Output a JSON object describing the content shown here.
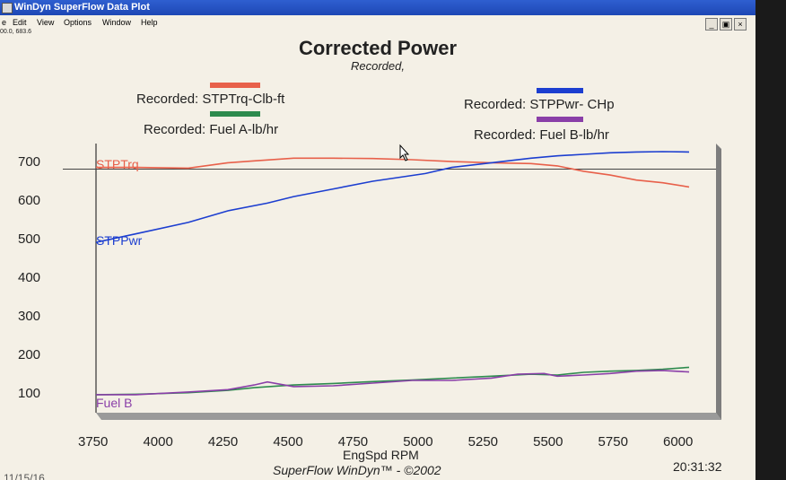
{
  "window": {
    "title": "WinDyn SuperFlow Data Plot",
    "coord_readout": "00.0, 683.6",
    "controls": {
      "minimize": "_",
      "restore": "▣",
      "close": "×"
    }
  },
  "menu": [
    "e",
    "Edit",
    "View",
    "Options",
    "Window",
    "Help"
  ],
  "legend": [
    {
      "label": "Recorded: STPTrq-Clb-ft",
      "color": "#e8604a"
    },
    {
      "label": "Recorded: STPPwr- CHp",
      "color": "#1c3ed0"
    },
    {
      "label": "Recorded: Fuel A-lb/hr",
      "color": "#2e8b4e"
    },
    {
      "label": "Recorded: Fuel B-lb/hr",
      "color": "#8a3fa8"
    }
  ],
  "inline_labels": {
    "trq": "STPTrq",
    "pwr": "STPPwr",
    "fuel": "Fuel B"
  },
  "footer": {
    "credit": "SuperFlow WinDyn™ - ©2002",
    "time": "20:31:32",
    "date_fragment": "11/15/16"
  },
  "chart_data": {
    "type": "line",
    "title": "Corrected Power",
    "subtitle": "Recorded,",
    "xlabel": "EngSpd  RPM",
    "xlim": [
      3750,
      6000
    ],
    "ylim": [
      50,
      750
    ],
    "x_ticks": [
      3750,
      4000,
      4250,
      4500,
      4750,
      5000,
      5250,
      5500,
      5750,
      6000
    ],
    "y_ticks": [
      100,
      200,
      300,
      400,
      500,
      600,
      700
    ],
    "reference_line": 683.6,
    "series": [
      {
        "name": "Recorded: STPTrq-Clb-ft",
        "color": "#e8604a",
        "x": [
          3750,
          3900,
          4100,
          4250,
          4350,
          4500,
          4650,
          4800,
          4950,
          5100,
          5250,
          5400,
          5500,
          5600,
          5700,
          5800,
          5900,
          6000
        ],
        "y": [
          688,
          688,
          686,
          700,
          705,
          712,
          712,
          711,
          708,
          703,
          700,
          698,
          692,
          678,
          668,
          655,
          648,
          637
        ]
      },
      {
        "name": "Recorded: STPPwr- CHp",
        "color": "#1c3ed0",
        "x": [
          3750,
          3900,
          4100,
          4250,
          4400,
          4500,
          4650,
          4800,
          5000,
          5100,
          5250,
          5400,
          5500,
          5600,
          5700,
          5800,
          5900,
          6000
        ],
        "y": [
          493,
          515,
          545,
          575,
          595,
          612,
          632,
          652,
          672,
          688,
          700,
          712,
          718,
          722,
          726,
          728,
          729,
          728
        ]
      },
      {
        "name": "Recorded: Fuel A-lb/hr",
        "color": "#2e8b4e",
        "x": [
          3750,
          3900,
          4100,
          4250,
          4350,
          4500,
          4650,
          4800,
          4950,
          5100,
          5250,
          5400,
          5500,
          5600,
          5700,
          5800,
          5900,
          6000
        ],
        "y": [
          97,
          98,
          102,
          108,
          115,
          122,
          126,
          131,
          135,
          140,
          145,
          150,
          148,
          155,
          158,
          160,
          163,
          168
        ]
      },
      {
        "name": "Recorded: Fuel B-lb/hr",
        "color": "#8a3fa8",
        "x": [
          3750,
          3900,
          4100,
          4250,
          4350,
          4400,
          4500,
          4650,
          4800,
          4950,
          5100,
          5250,
          5350,
          5450,
          5500,
          5600,
          5700,
          5800,
          5900,
          6000
        ],
        "y": [
          97,
          97,
          104,
          110,
          122,
          130,
          118,
          120,
          127,
          134,
          134,
          140,
          150,
          152,
          145,
          148,
          152,
          158,
          160,
          156
        ]
      }
    ]
  }
}
